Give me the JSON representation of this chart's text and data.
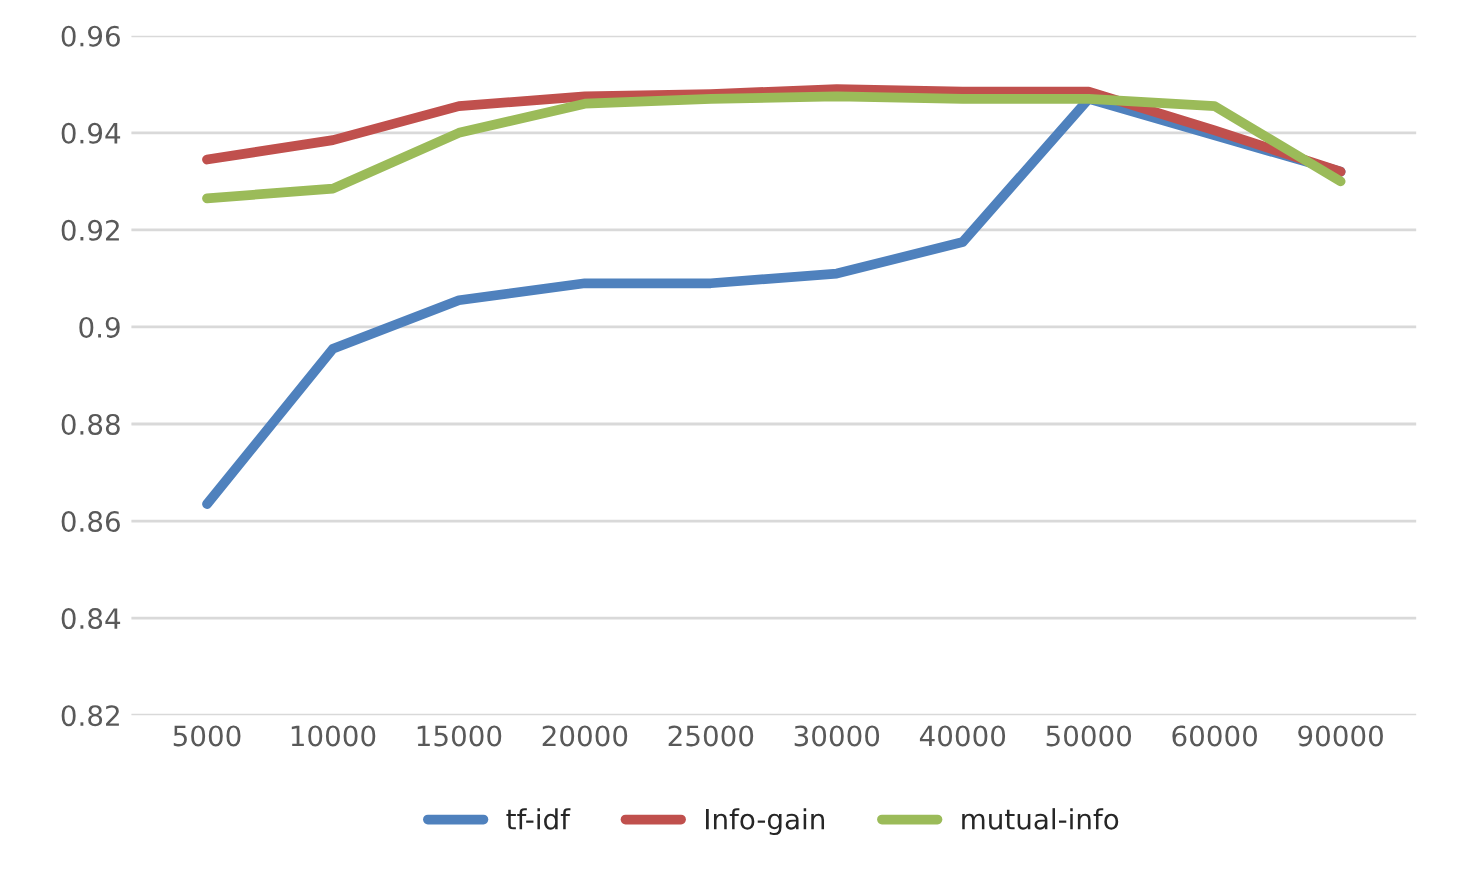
{
  "chart_data": {
    "type": "line",
    "categories": [
      "5000",
      "10000",
      "15000",
      "20000",
      "25000",
      "30000",
      "40000",
      "50000",
      "60000",
      "90000"
    ],
    "series": [
      {
        "name": "tf-idf",
        "color": "#4f81bd",
        "values": [
          0.8635,
          0.8955,
          0.9055,
          0.909,
          0.909,
          0.911,
          0.9175,
          0.947,
          0.9395,
          0.932
        ]
      },
      {
        "name": "Info-gain",
        "color": "#c0504d",
        "values": [
          0.9345,
          0.9385,
          0.9455,
          0.9475,
          0.948,
          0.949,
          0.9485,
          0.9485,
          0.9405,
          0.932
        ]
      },
      {
        "name": "mutual-info",
        "color": "#9bbb59",
        "values": [
          0.9265,
          0.9285,
          0.94,
          0.946,
          0.947,
          0.9475,
          0.947,
          0.947,
          0.9455,
          0.93
        ]
      }
    ],
    "ylim": [
      0.82,
      0.96
    ],
    "yticks": [
      0.82,
      0.84,
      0.86,
      0.88,
      0.9,
      0.92,
      0.94,
      0.96
    ],
    "grid": "y",
    "legend": "bottom",
    "marker": "none",
    "line_style": "solid"
  }
}
